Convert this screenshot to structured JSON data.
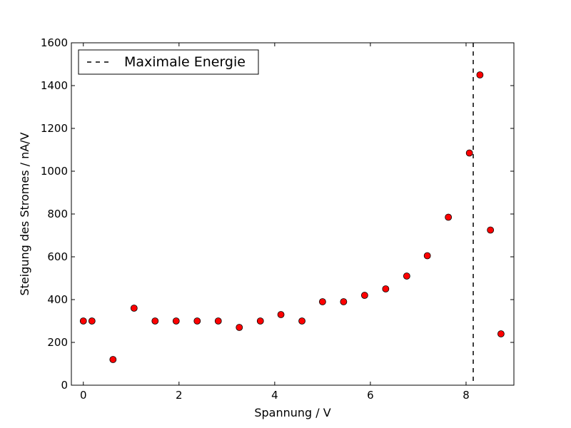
{
  "chart_data": {
    "type": "scatter",
    "xlabel": "Spannung / V",
    "ylabel": "Steigung des Stromes / nA/V",
    "xlim": [
      -0.25,
      9.0
    ],
    "ylim": [
      0,
      1600
    ],
    "xticks": [
      0,
      2,
      4,
      6,
      8
    ],
    "yticks": [
      0,
      200,
      400,
      600,
      800,
      1000,
      1200,
      1400,
      1600
    ],
    "grid": false,
    "legend_position": "top-left",
    "series": [
      {
        "marker_color": "#ff0000",
        "x": [
          0.0,
          0.18,
          0.62,
          1.06,
          1.5,
          1.94,
          2.38,
          2.82,
          3.26,
          3.7,
          4.13,
          4.57,
          5.0,
          5.44,
          5.88,
          6.32,
          6.76,
          7.19,
          7.63,
          8.07,
          8.29,
          8.51,
          8.73
        ],
        "y": [
          300,
          300,
          120,
          360,
          300,
          300,
          300,
          300,
          270,
          300,
          330,
          300,
          390,
          390,
          420,
          450,
          510,
          605,
          785,
          1085,
          1450,
          725,
          240
        ]
      }
    ],
    "reference_lines": [
      {
        "name": "Maximale Energie",
        "orientation": "vertical",
        "x": 8.15,
        "style": "dashed",
        "color": "#000000"
      }
    ]
  }
}
